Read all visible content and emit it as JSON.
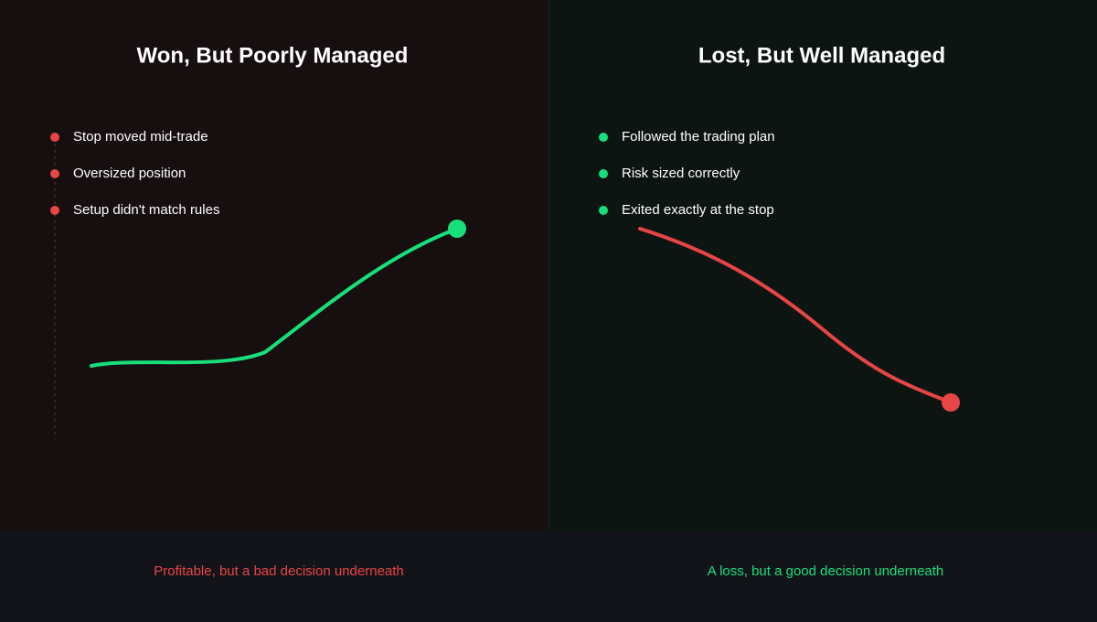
{
  "panels": [
    {
      "title": "Won, But Poorly Managed",
      "items": [
        "Stop moved mid-trade",
        "Oversized position",
        "Setup didn't match rules"
      ],
      "caption": "Profitable, but a bad decision underneath"
    },
    {
      "title": "Lost, But Well Managed",
      "items": [
        "Followed the trading plan",
        "Risk sized correctly",
        "Exited exactly at the stop"
      ],
      "caption": "A loss, but a good decision underneath"
    }
  ]
}
